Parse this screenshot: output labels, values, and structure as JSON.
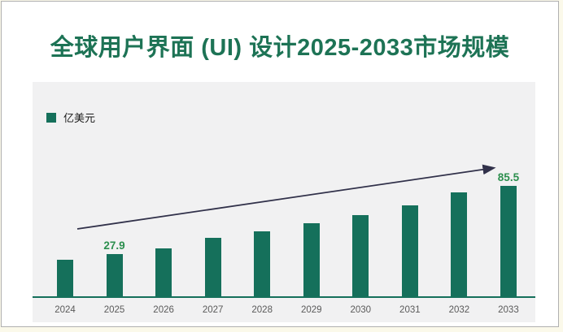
{
  "page": {
    "title": "全球用户界面 (UI) 设计2025-2033市场规模"
  },
  "chart_data": {
    "type": "bar",
    "title": "全球用户界面 (UI) 设计2025-2033市场规模",
    "unit_label": "亿美元",
    "categories": [
      "2024",
      "2025",
      "2026",
      "2027",
      "2028",
      "2029",
      "2030",
      "2031",
      "2032",
      "2033"
    ],
    "values": [
      23.8,
      27.9,
      33.3,
      41.7,
      47.6,
      54.0,
      61.0,
      69.2,
      79.6,
      85.5
    ],
    "labeled_values": {
      "2025": "27.9",
      "2033": "85.5"
    },
    "xlabel": "",
    "ylabel": "亿美元",
    "ylim": [
      0,
      95
    ],
    "grid": false,
    "legend_position": "top-left",
    "annotations": {
      "trend_arrow": {
        "from_category": "2024",
        "to_category": "2033",
        "direction": "up-right"
      }
    },
    "colors": {
      "bar": "#15705b",
      "title_text": "#1d7355",
      "value_label": "#2c8f4e",
      "tick_label": "#5a5a5a",
      "axis_line": "#15705b",
      "panel_background": "#f1f1f2",
      "page_background": "#ffffff",
      "outer_background": "#fbf9ea",
      "trend_arrow": "#31314a",
      "page_border": "#b0b0b0"
    }
  }
}
